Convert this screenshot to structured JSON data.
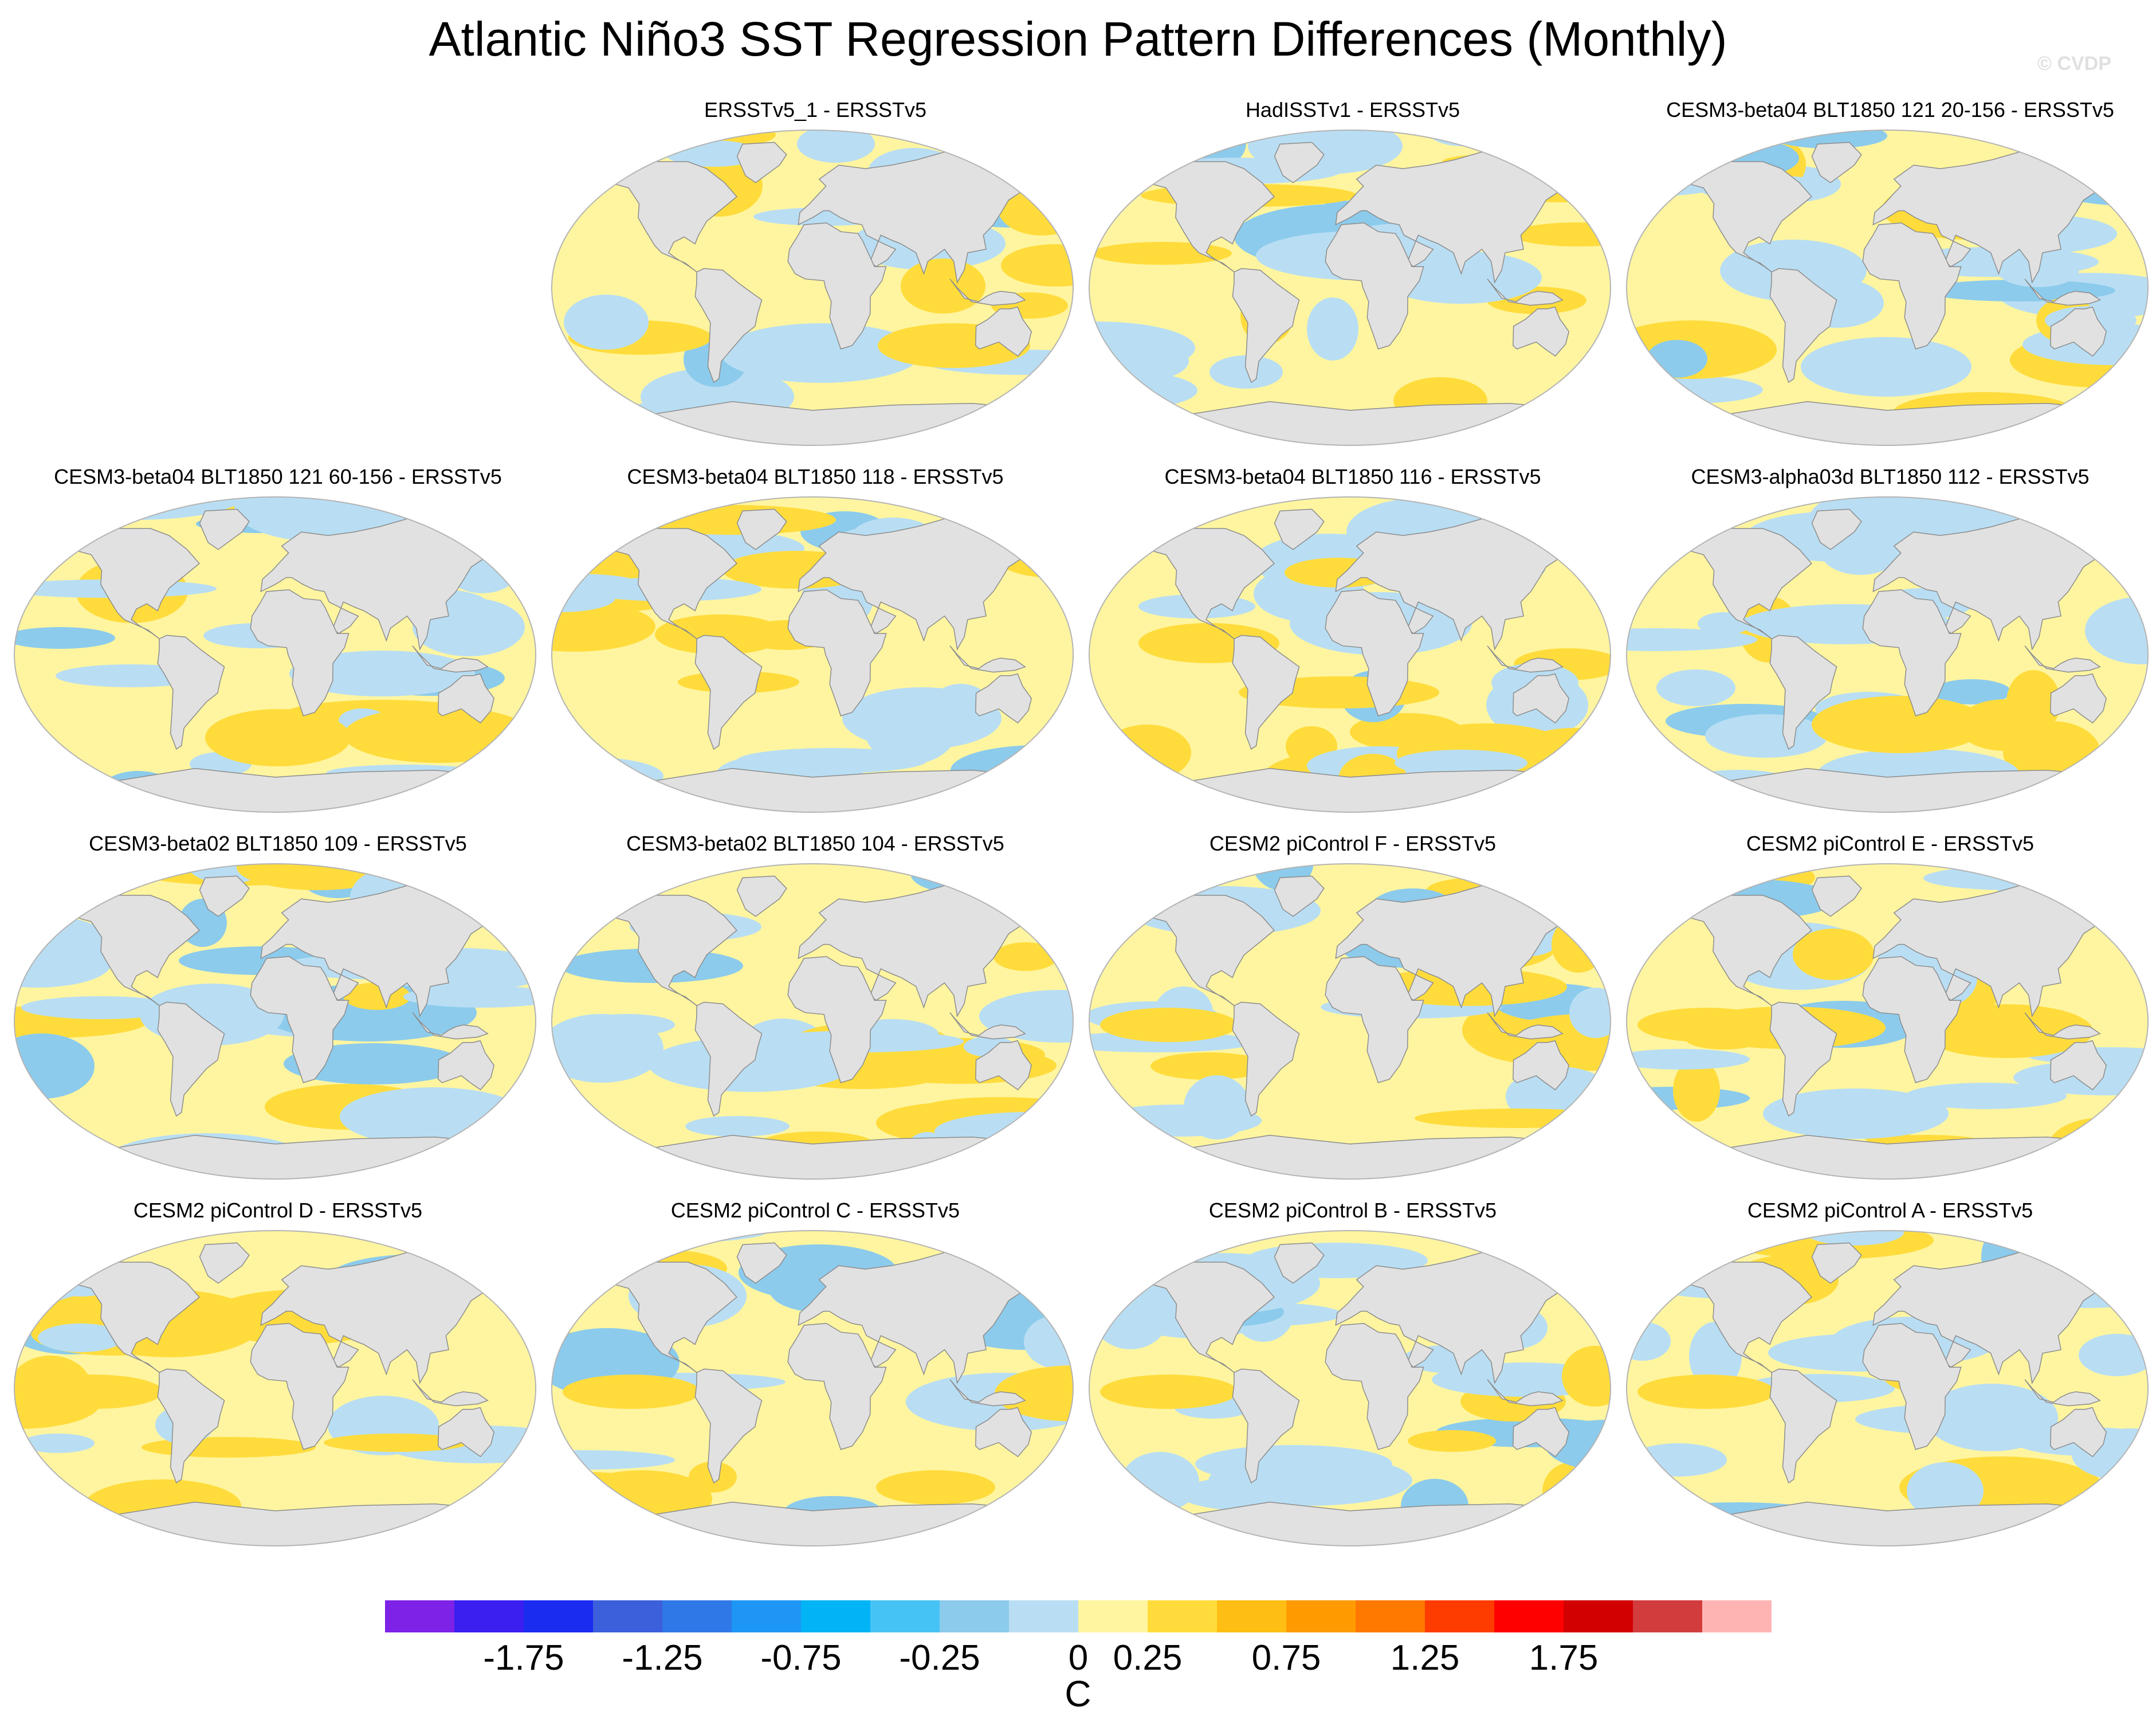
{
  "title": "Atlantic Niño3 SST Regression Pattern Differences (Monthly)",
  "watermark": "© CVDP",
  "panels": [
    {
      "title": "ERSSTv5_1 - ERSSTv5",
      "variant": 0
    },
    {
      "title": "HadISSTv1 - ERSSTv5",
      "variant": 1
    },
    {
      "title": "CESM3-beta04 BLT1850 121 20-156 - ERSSTv5",
      "variant": 2
    },
    {
      "title": "CESM3-beta04 BLT1850 121 60-156 - ERSSTv5",
      "variant": 3
    },
    {
      "title": "CESM3-beta04 BLT1850 118 - ERSSTv5",
      "variant": 4
    },
    {
      "title": "CESM3-beta04 BLT1850 116 - ERSSTv5",
      "variant": 5
    },
    {
      "title": "CESM3-alpha03d BLT1850 112 - ERSSTv5",
      "variant": 6
    },
    {
      "title": "CESM3-beta02 BLT1850 109 - ERSSTv5",
      "variant": 7
    },
    {
      "title": "CESM3-beta02 BLT1850 104 - ERSSTv5",
      "variant": 8
    },
    {
      "title": "CESM2 piControl F - ERSSTv5",
      "variant": 9
    },
    {
      "title": "CESM2 piControl E - ERSSTv5",
      "variant": 10
    },
    {
      "title": "CESM2 piControl D - ERSSTv5",
      "variant": 11
    },
    {
      "title": "CESM2 piControl C - ERSSTv5",
      "variant": 12
    },
    {
      "title": "CESM2 piControl B - ERSSTv5",
      "variant": 13
    },
    {
      "title": "CESM2 piControl A - ERSSTv5",
      "variant": 14
    }
  ],
  "colorbar": {
    "colors": [
      "#7d22e6",
      "#3a1ff0",
      "#1a2cf0",
      "#3c5fdc",
      "#2f78e8",
      "#1e96f5",
      "#00b4f5",
      "#46c3f5",
      "#8ccbec",
      "#b9def3",
      "#fff5a0",
      "#ffdc3c",
      "#ffbe14",
      "#ff9b00",
      "#ff7800",
      "#ff3c00",
      "#ff0000",
      "#d20000",
      "#d23c3c",
      "#ffb4b4"
    ],
    "tick_labels": [
      "-1.75",
      "-1.25",
      "-0.75",
      "-0.25",
      "0",
      "0.25",
      "0.75",
      "1.25",
      "1.75"
    ],
    "units": "C"
  },
  "map_colors": {
    "land": "#e1e1e1",
    "coast": "#8c8c8c",
    "neutral_warm": "#fff5a0",
    "neutral_cool": "#b9def3",
    "warm": "#ffdc3c",
    "cool": "#8ccbec",
    "outline": "#b4b4b4"
  }
}
